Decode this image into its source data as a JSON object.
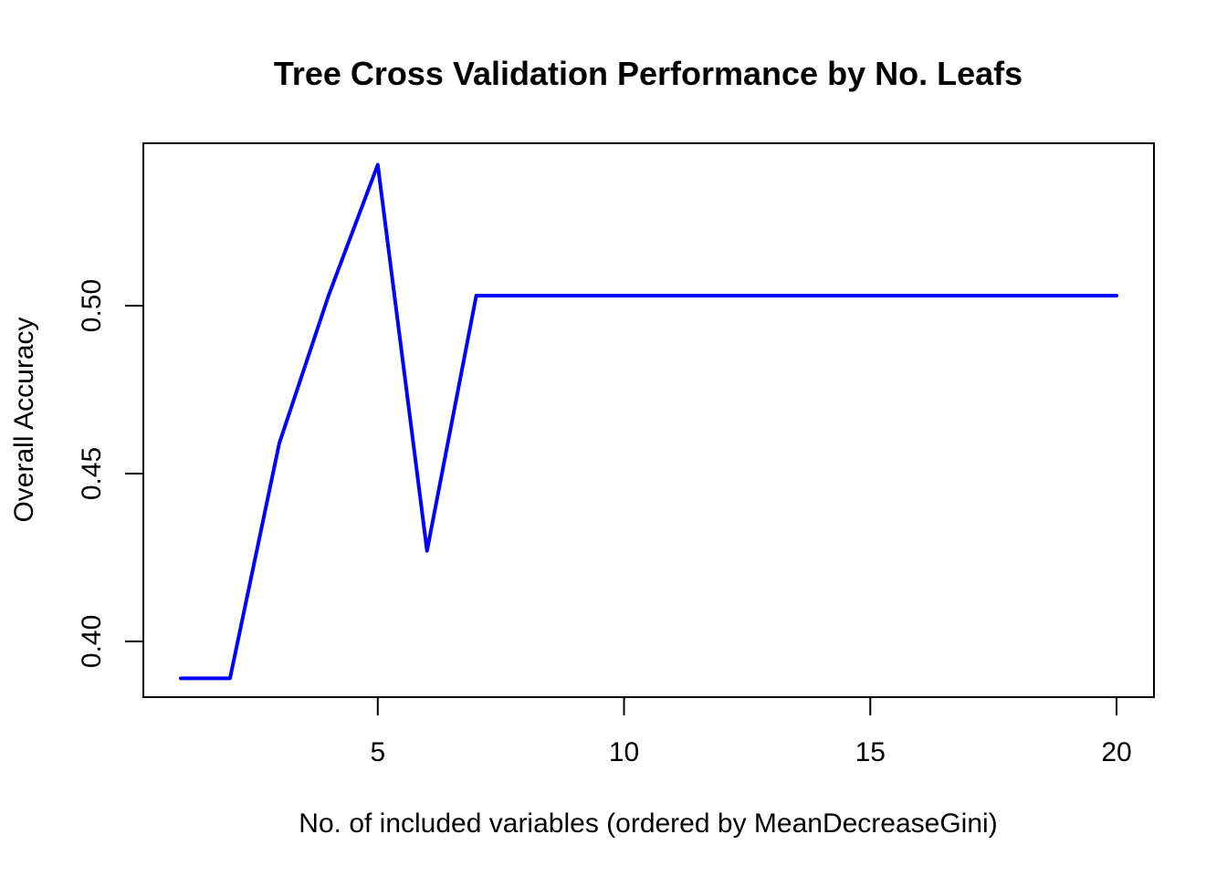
{
  "chart_data": {
    "type": "line",
    "title": "Tree Cross Validation Performance by No. Leafs",
    "xlabel": "No. of included variables (ordered by MeanDecreaseGini)",
    "ylabel": "Overall Accuracy",
    "xlim": [
      0.24,
      20.76
    ],
    "ylim": [
      0.3834,
      0.5484
    ],
    "x_ticks": [
      5,
      10,
      15,
      20
    ],
    "x_tick_labels": [
      "5",
      "10",
      "15",
      "20"
    ],
    "y_ticks": [
      0.4,
      0.45,
      0.5
    ],
    "y_tick_labels": [
      "0.40",
      "0.45",
      "0.50"
    ],
    "grid": false,
    "series": [
      {
        "color": "#0000ff",
        "x": [
          1,
          2,
          3,
          4,
          5,
          6,
          7,
          8,
          9,
          10,
          11,
          12,
          13,
          14,
          15,
          16,
          17,
          18,
          19,
          20
        ],
        "values": [
          0.389,
          0.389,
          0.459,
          0.503,
          0.542,
          0.427,
          0.503,
          0.503,
          0.503,
          0.503,
          0.503,
          0.503,
          0.503,
          0.503,
          0.503,
          0.503,
          0.503,
          0.503,
          0.503,
          0.503
        ]
      }
    ]
  }
}
